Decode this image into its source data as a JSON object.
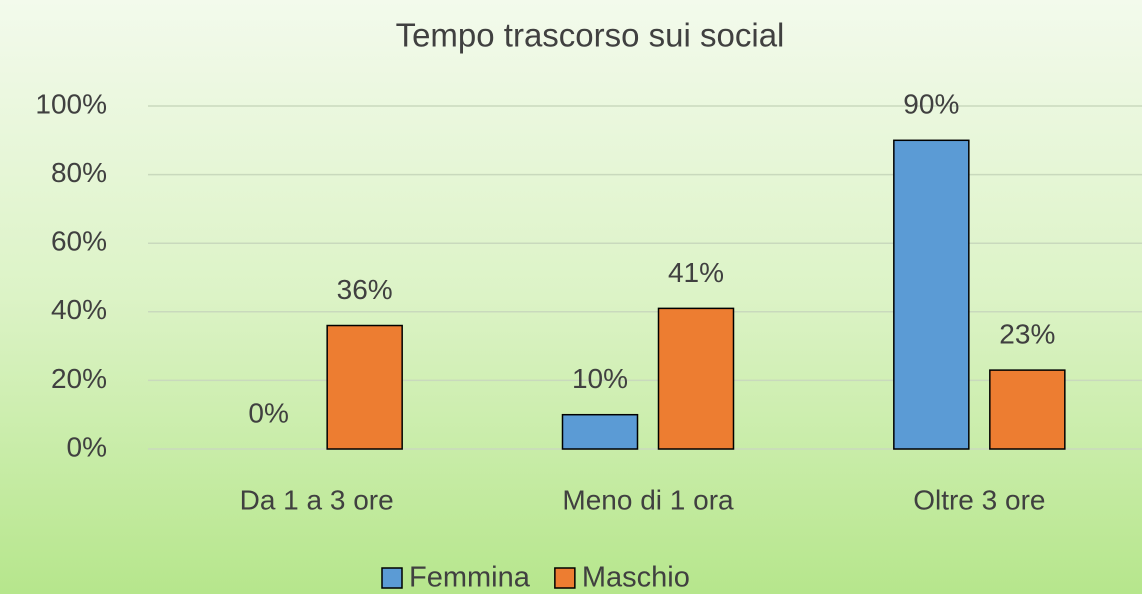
{
  "chart_data": {
    "type": "bar",
    "title": "Tempo trascorso sui social",
    "categories": [
      "Da 1 a 3 ore",
      "Meno di 1 ora",
      "Oltre 3 ore"
    ],
    "series": [
      {
        "name": "Femmina",
        "color": "#5b9bd5",
        "values": [
          0,
          10,
          90
        ],
        "value_labels": [
          "0%",
          "10%",
          "90%"
        ]
      },
      {
        "name": "Maschio",
        "color": "#ed7d31",
        "values": [
          36,
          41,
          23
        ],
        "value_labels": [
          "36%",
          "41%",
          "23%"
        ]
      }
    ],
    "ylim": [
      0,
      100
    ],
    "yticks": [
      {
        "value": 0,
        "label": "0%"
      },
      {
        "value": 20,
        "label": "20%"
      },
      {
        "value": 40,
        "label": "40%"
      },
      {
        "value": 60,
        "label": "60%"
      },
      {
        "value": 80,
        "label": "80%"
      },
      {
        "value": 100,
        "label": "100%"
      }
    ],
    "grid": true,
    "legend": "bottom"
  }
}
